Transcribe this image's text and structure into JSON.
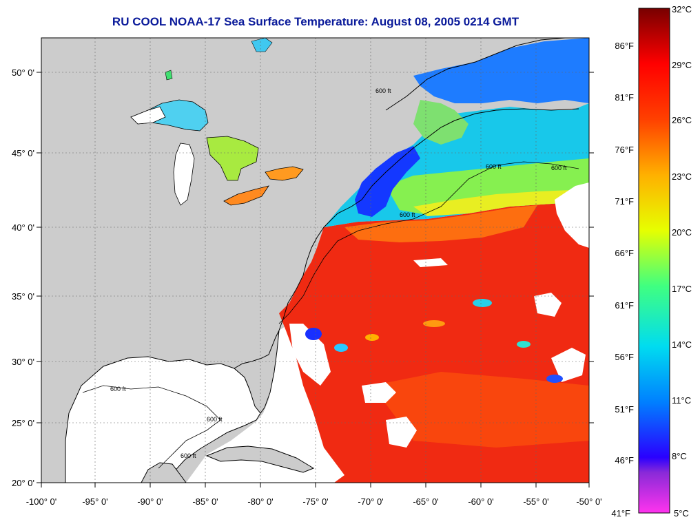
{
  "title": "RU COOL  NOAA-17  Sea Surface Temperature:  August 08, 2005 0214 GMT",
  "map": {
    "lon_labels": [
      "-100° 0'",
      "-95° 0'",
      "-90° 0'",
      "-85° 0'",
      "-80° 0'",
      "-75° 0'",
      "-70° 0'",
      "-65° 0'",
      "-60° 0'",
      "-55° 0'",
      "-50° 0'"
    ],
    "lat_labels": [
      "50° 0'",
      "45° 0'",
      "40° 0'",
      "35° 0'",
      "30° 0'",
      "25° 0'",
      "20° 0'"
    ],
    "contour_labels": [
      "600 ft",
      "600 ft",
      "600 ft",
      "600 ft",
      "600 ft",
      "600 ft",
      "600 ft"
    ],
    "land_color": "#cccccc",
    "no_data_color": "#ffffff"
  },
  "colorbar": {
    "celsius": [
      "32°C",
      "29°C",
      "26°C",
      "23°C",
      "20°C",
      "17°C",
      "14°C",
      "11°C",
      "8°C",
      "5°C"
    ],
    "fahrenheit": [
      "86°F",
      "81°F",
      "76°F",
      "71°F",
      "66°F",
      "61°F",
      "56°F",
      "51°F",
      "46°F",
      "41°F"
    ],
    "stops": [
      "#ff33ee",
      "#8a2ad8",
      "#2a00ff",
      "#0080ff",
      "#00dcf0",
      "#40ff80",
      "#e6ff00",
      "#ffb000",
      "#ff4000",
      "#ff0000",
      "#780000"
    ]
  }
}
